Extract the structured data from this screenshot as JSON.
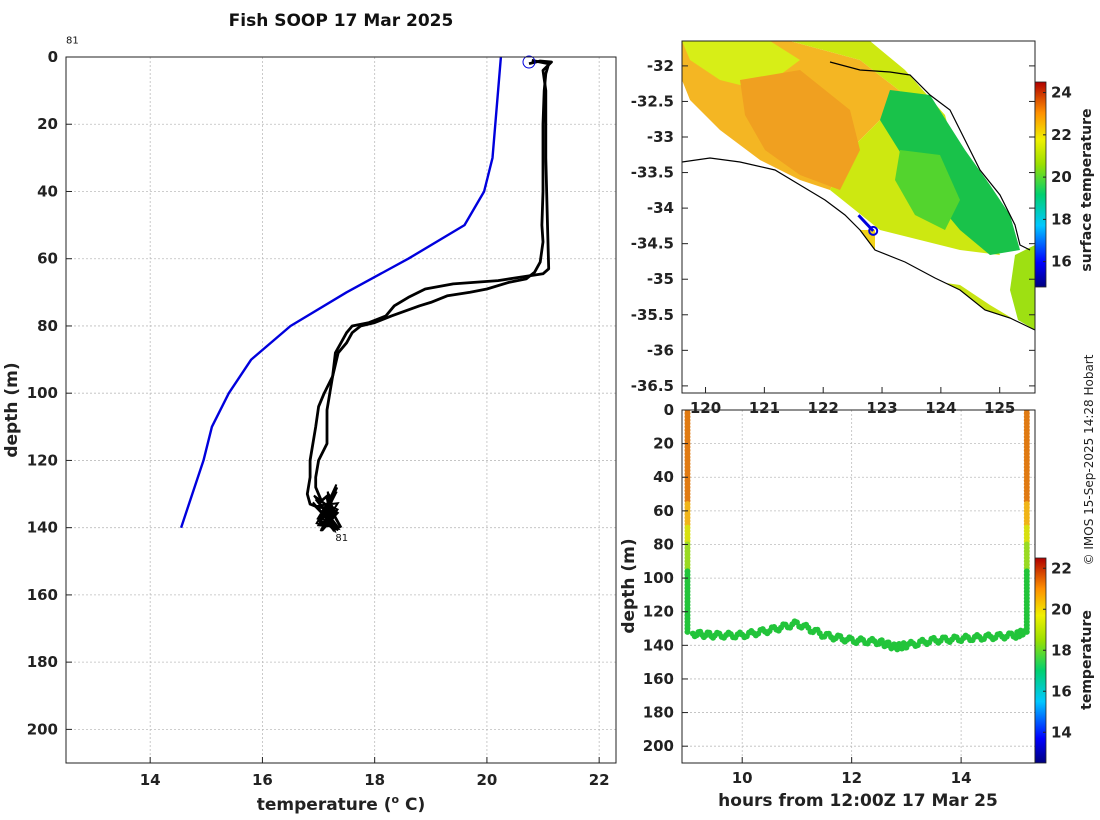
{
  "title": "Fish SOOP 17 Mar 2025",
  "credit": "© IMOS 15-Sep-2025 14:28 Hobart",
  "colors": {
    "blue_profile": "#0000dd",
    "black_profile": "#000000",
    "land_fill": "#ffffff",
    "coast": "#000000"
  },
  "chart_data": [
    {
      "type": "line",
      "name": "temperature-profile",
      "xlabel": "temperature (° C)",
      "xlabel_parts": {
        "pre": "temperature (",
        "sup": "o",
        "post": " C)"
      },
      "ylabel": "depth (m)",
      "xlim": [
        12.5,
        22.3
      ],
      "ylim": [
        0,
        210
      ],
      "y_reversed": true,
      "xticks": [
        14,
        16,
        18,
        20,
        22
      ],
      "yticks": [
        0,
        20,
        40,
        60,
        80,
        100,
        120,
        140,
        160,
        180,
        200
      ],
      "grid": true,
      "annotations": [
        {
          "text": "81",
          "x": 12.5,
          "y": -4
        },
        {
          "text": "81",
          "x": 17.3,
          "y": 144
        }
      ],
      "surface_marker": {
        "x": 20.75,
        "y": 1.5
      },
      "series": [
        {
          "name": "climatology",
          "color": "#0000dd",
          "points": [
            [
              20.25,
              0
            ],
            [
              20.2,
              10
            ],
            [
              20.1,
              30
            ],
            [
              19.95,
              40
            ],
            [
              19.6,
              50
            ],
            [
              18.6,
              60
            ],
            [
              17.5,
              70
            ],
            [
              16.5,
              80
            ],
            [
              15.8,
              90
            ],
            [
              15.4,
              100
            ],
            [
              15.1,
              110
            ],
            [
              14.95,
              120
            ],
            [
              14.75,
              130
            ],
            [
              14.55,
              140
            ]
          ]
        },
        {
          "name": "profile-down",
          "color": "#000000",
          "points": [
            [
              20.75,
              2
            ],
            [
              20.95,
              1.2
            ],
            [
              21.15,
              1.5
            ],
            [
              21.0,
              4
            ],
            [
              21.05,
              10
            ],
            [
              21.05,
              30
            ],
            [
              21.08,
              50
            ],
            [
              21.1,
              63
            ],
            [
              21.0,
              64.5
            ],
            [
              20.2,
              66.5
            ],
            [
              19.4,
              67.5
            ],
            [
              18.9,
              69
            ],
            [
              18.6,
              71.5
            ],
            [
              18.35,
              74
            ],
            [
              18.2,
              77
            ],
            [
              17.9,
              79
            ],
            [
              17.6,
              80
            ],
            [
              17.5,
              82
            ],
            [
              17.4,
              85
            ],
            [
              17.3,
              88
            ],
            [
              17.25,
              95
            ],
            [
              17.2,
              100
            ],
            [
              17.15,
              105
            ],
            [
              17.15,
              115
            ],
            [
              17.0,
              120
            ],
            [
              16.95,
              125
            ],
            [
              16.95,
              128
            ],
            [
              17.05,
              132
            ],
            [
              17.2,
              130
            ]
          ]
        },
        {
          "name": "profile-up",
          "color": "#000000",
          "points": [
            [
              17.4,
              140
            ],
            [
              17.3,
              137
            ],
            [
              17.2,
              134
            ],
            [
              17.0,
              134
            ],
            [
              16.85,
              133
            ],
            [
              16.8,
              130
            ],
            [
              16.85,
              125
            ],
            [
              16.85,
              120
            ],
            [
              16.95,
              110
            ],
            [
              17.0,
              104
            ],
            [
              17.1,
              100
            ],
            [
              17.25,
              95
            ],
            [
              17.35,
              88
            ],
            [
              17.5,
              85
            ],
            [
              17.6,
              82
            ],
            [
              17.75,
              80
            ],
            [
              18.0,
              79
            ],
            [
              18.3,
              77
            ],
            [
              18.8,
              74
            ],
            [
              19.0,
              73
            ],
            [
              19.3,
              71
            ],
            [
              19.7,
              70
            ],
            [
              20.0,
              69
            ],
            [
              20.4,
              67
            ],
            [
              20.7,
              66
            ],
            [
              20.85,
              64
            ],
            [
              20.95,
              61
            ],
            [
              21.0,
              55
            ],
            [
              20.98,
              50
            ],
            [
              21.0,
              40
            ],
            [
              21.0,
              20
            ],
            [
              21.02,
              10
            ],
            [
              21.05,
              5
            ],
            [
              21.1,
              2
            ],
            [
              20.8,
              1
            ]
          ]
        }
      ]
    },
    {
      "type": "heatmap",
      "name": "surface-temperature-map",
      "xlim": [
        119.6,
        125.6
      ],
      "ylim": [
        -36.6,
        -31.65
      ],
      "xticks": [
        120,
        121,
        122,
        123,
        124,
        125
      ],
      "yticks": [
        -32,
        -32.5,
        -33,
        -33.5,
        -34,
        -34.5,
        -35,
        -35.5,
        -36,
        -36.5
      ],
      "yticklabels": [
        "-32",
        "-32.5",
        "-33",
        "-33.5",
        "-34",
        "-34.5",
        "-35",
        "-35.5",
        "-36",
        "-36.5"
      ],
      "colorbar": {
        "label": "surface temperature",
        "min": 14.8,
        "max": 24.5,
        "ticks": [
          16,
          18,
          20,
          22,
          24
        ]
      },
      "vessel_position": {
        "lon": 122.85,
        "lat": -34.32
      },
      "vessel_track": [
        [
          122.6,
          -34.1
        ],
        [
          122.85,
          -34.32
        ]
      ]
    },
    {
      "type": "scatter",
      "name": "depth-time-section",
      "xlabel": "hours from 12:00Z 17 Mar 25",
      "ylabel": "depth (m)",
      "xlim": [
        8.9,
        15.35
      ],
      "ylim": [
        0,
        210
      ],
      "y_reversed": true,
      "xticks": [
        10,
        12,
        14
      ],
      "yticks": [
        0,
        20,
        40,
        60,
        80,
        100,
        120,
        140,
        160,
        180,
        200
      ],
      "colorbar": {
        "label": "temperature",
        "min": 12.5,
        "max": 22.5,
        "ticks": [
          14,
          16,
          18,
          20,
          22
        ]
      },
      "bottom_track": {
        "hours": [
          9.1,
          9.5,
          10.0,
          10.5,
          11.0,
          11.5,
          12.0,
          12.5,
          12.8,
          13.0,
          13.5,
          14.0,
          14.5,
          15.0,
          15.15
        ],
        "depths": [
          133,
          134,
          134,
          131,
          127,
          134,
          137,
          138,
          141,
          140,
          137,
          136,
          135,
          134,
          132
        ]
      },
      "descent": {
        "hour": 9.0,
        "depth_start": 0,
        "depth_end": 132
      },
      "ascent": {
        "hour": 15.2,
        "depth_start": 132,
        "depth_end": 0
      }
    }
  ]
}
